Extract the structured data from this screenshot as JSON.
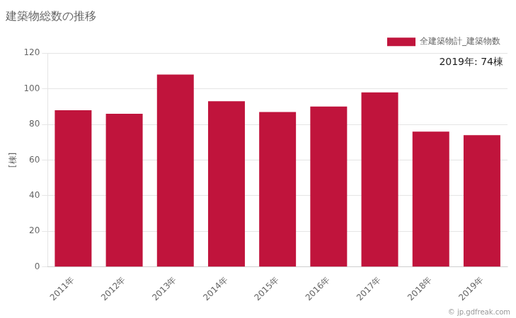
{
  "chart_data": {
    "type": "bar",
    "title": "建築物総数の推移",
    "y_label": "[棟]",
    "categories": [
      "2011年",
      "2012年",
      "2013年",
      "2014年",
      "2015年",
      "2016年",
      "2017年",
      "2018年",
      "2019年"
    ],
    "series": [
      {
        "name": "全建築物計_建築物数",
        "color": "#c0143c",
        "values": [
          88,
          86,
          108,
          93,
          87,
          90,
          98,
          76,
          74
        ]
      }
    ],
    "ylim": [
      0,
      120
    ],
    "yticks": [
      0,
      20,
      40,
      60,
      80,
      100,
      120
    ],
    "grid": true,
    "legend": "upper right",
    "annotations": [
      "2019年: 74棟",
      "© jp.gdfreak.com"
    ]
  }
}
